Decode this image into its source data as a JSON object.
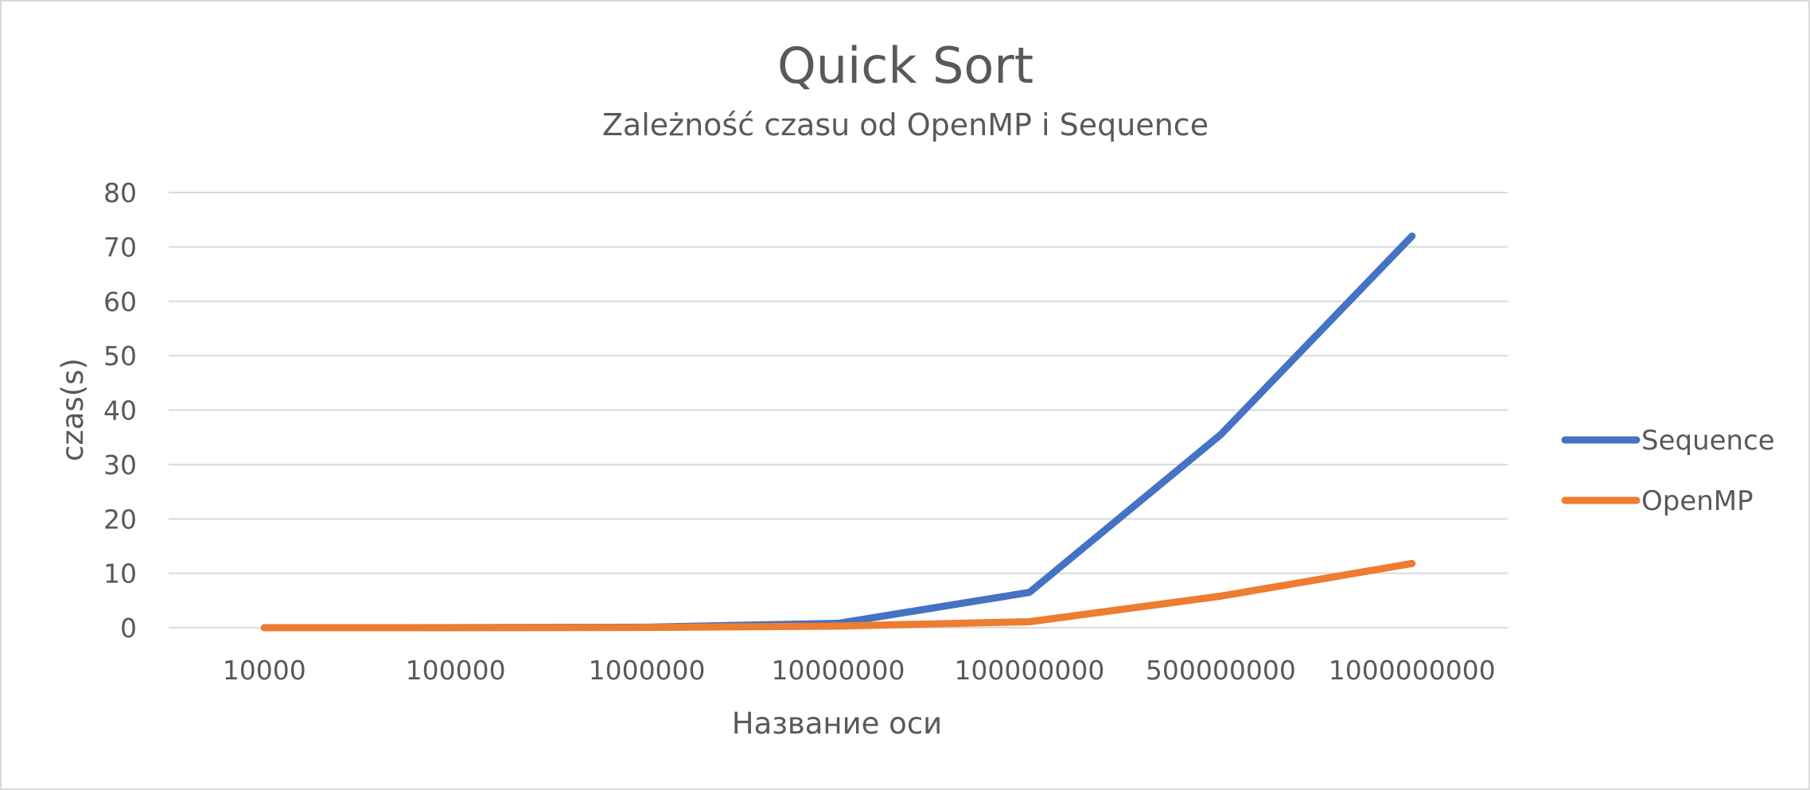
{
  "chart_data": {
    "type": "line",
    "title": "Quick Sort",
    "subtitle": "Zależność czasu od OpenMP i Sequence",
    "xlabel": "Название оси",
    "ylabel": "czas(s)",
    "categories": [
      "10000",
      "100000",
      "1000000",
      "10000000",
      "100000000",
      "500000000",
      "1000000000"
    ],
    "ylim": [
      0,
      80
    ],
    "yticks": [
      "0",
      "10",
      "20",
      "30",
      "40",
      "50",
      "60",
      "70",
      "80"
    ],
    "grid": true,
    "legend_position": "right",
    "series": [
      {
        "name": "Sequence",
        "color": "#4472c4",
        "values": [
          0.001,
          0.01,
          0.1,
          0.8,
          6.5,
          35.5,
          72
        ]
      },
      {
        "name": "OpenMP",
        "color": "#ed7d31",
        "values": [
          0.0005,
          0.005,
          0.05,
          0.3,
          1.1,
          5.8,
          11.8
        ]
      }
    ]
  }
}
